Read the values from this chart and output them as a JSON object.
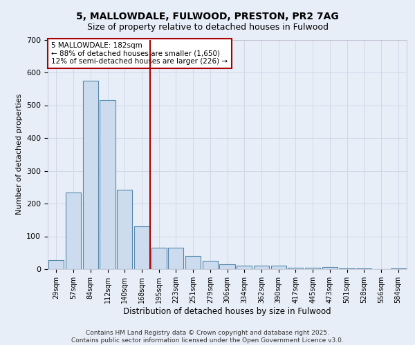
{
  "title1": "5, MALLOWDALE, FULWOOD, PRESTON, PR2 7AG",
  "title2": "Size of property relative to detached houses in Fulwood",
  "xlabel": "Distribution of detached houses by size in Fulwood",
  "ylabel": "Number of detached properties",
  "categories": [
    "29sqm",
    "57sqm",
    "84sqm",
    "112sqm",
    "140sqm",
    "168sqm",
    "195sqm",
    "223sqm",
    "251sqm",
    "279sqm",
    "306sqm",
    "334sqm",
    "362sqm",
    "390sqm",
    "417sqm",
    "445sqm",
    "473sqm",
    "501sqm",
    "528sqm",
    "556sqm",
    "584sqm"
  ],
  "values": [
    28,
    234,
    575,
    515,
    242,
    130,
    65,
    65,
    40,
    25,
    15,
    10,
    10,
    10,
    5,
    5,
    7,
    3,
    2,
    1,
    3
  ],
  "bar_color": "#ccdcee",
  "bar_edge_color": "#5588aa",
  "vline_x_index": 6,
  "vline_color": "#aa0000",
  "annotation_text": "5 MALLOWDALE: 182sqm\n← 88% of detached houses are smaller (1,650)\n12% of semi-detached houses are larger (226) →",
  "annotation_box_facecolor": "#ffffff",
  "annotation_box_edgecolor": "#aa0000",
  "bg_color": "#e8eef8",
  "plot_bg_color": "#e8eef8",
  "grid_color": "#d0d8e8",
  "footer_text": "Contains HM Land Registry data © Crown copyright and database right 2025.\nContains public sector information licensed under the Open Government Licence v3.0.",
  "ylim": [
    0,
    700
  ],
  "yticks": [
    0,
    100,
    200,
    300,
    400,
    500,
    600,
    700
  ]
}
